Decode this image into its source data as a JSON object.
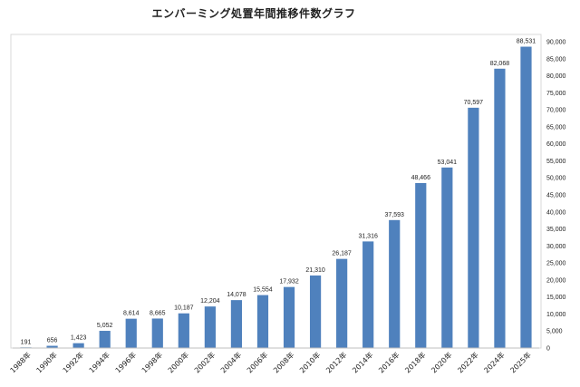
{
  "chart_data": {
    "type": "bar",
    "title": "エンバーミング処置年間推移件数グラフ",
    "categories": [
      "1988年",
      "1990年",
      "1992年",
      "1994年",
      "1996年",
      "1998年",
      "2000年",
      "2002年",
      "2004年",
      "2006年",
      "2008年",
      "2010年",
      "2012年",
      "2014年",
      "2016年",
      "2018年",
      "2020年",
      "2022年",
      "2024年",
      "2025年"
    ],
    "values": [
      191,
      656,
      1423,
      5052,
      8614,
      8665,
      10187,
      12204,
      14078,
      15554,
      17932,
      21310,
      26187,
      31316,
      37593,
      48466,
      53041,
      70597,
      82068,
      88531
    ],
    "value_labels": [
      "191",
      "656",
      "1,423",
      "5,052",
      "8,614",
      "8,665",
      "10,187",
      "12,204",
      "14,078",
      "15,554",
      "17,932",
      "21,310",
      "26,187",
      "31,316",
      "37,593",
      "48,466",
      "53,041",
      "70,597",
      "82,068",
      "88,531"
    ],
    "y_ticks": [
      "0",
      "5,000",
      "10,000",
      "15,000",
      "20,000",
      "25,000",
      "30,000",
      "35,000",
      "40,000",
      "45,000",
      "50,000",
      "55,000",
      "60,000",
      "65,000",
      "70,000",
      "75,000",
      "80,000",
      "85,000",
      "90,000"
    ],
    "ylim": [
      0,
      90000
    ],
    "y_axis_side": "right",
    "grid": false,
    "bar_color": "#4f81bd"
  }
}
